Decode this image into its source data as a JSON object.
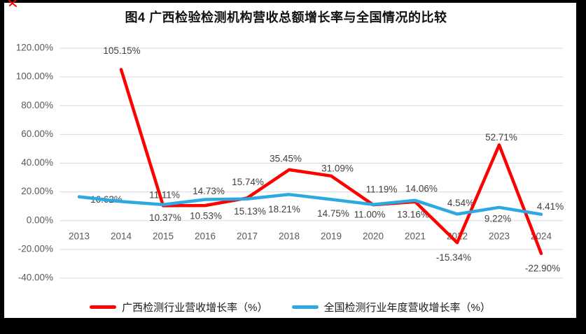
{
  "page": {
    "frame_color": "#000000",
    "panel_bg": "#ffffff",
    "corner_mark_color": "#ff0000"
  },
  "chart_data": {
    "type": "line",
    "title": "图4 广西检验检测机构营收总额增长率与全国情况的比较",
    "categories": [
      "2013",
      "2014",
      "2015",
      "2016",
      "2017",
      "2018",
      "2019",
      "2020",
      "2021",
      "2022",
      "2023",
      "2024"
    ],
    "ylim": [
      -40,
      120
    ],
    "grid": true,
    "legend_position": "bottom",
    "grid_color": "#d9d9d9",
    "axis_text_color": "#595959",
    "label_text_color": "#404040",
    "y_ticks": [
      {
        "label": "120.00%",
        "value": 120
      },
      {
        "label": "100.00%",
        "value": 100
      },
      {
        "label": "80.00%",
        "value": 80
      },
      {
        "label": "60.00%",
        "value": 60
      },
      {
        "label": "40.00%",
        "value": 40
      },
      {
        "label": "20.00%",
        "value": 20
      },
      {
        "label": "0.00%",
        "value": 0
      },
      {
        "label": "-20.00%",
        "value": -20
      },
      {
        "label": "-40.00%",
        "value": -40
      }
    ],
    "series": [
      {
        "name": "广西检测行业营收增长率（%）",
        "color": "#fe0000",
        "values": [
          null,
          105.15,
          10.37,
          10.53,
          15.74,
          35.45,
          31.09,
          11.0,
          13.16,
          -15.34,
          52.71,
          -22.9
        ],
        "labels": [
          "",
          "105.15%",
          "10.37%",
          "10.53%",
          "15.74%",
          "35.45%",
          "31.09%",
          "11.00%",
          "13.16%",
          "-15.34%",
          "52.71%",
          "-22.90%"
        ]
      },
      {
        "name": "全国检测行业年度营收增长率（%）",
        "color": "#2ba9e0",
        "values": [
          16.62,
          13.3,
          11.11,
          14.73,
          15.13,
          18.21,
          14.75,
          11.19,
          14.06,
          4.54,
          9.22,
          4.41
        ],
        "labels": [
          "16.62%",
          "",
          "11.11%",
          "14.73%",
          "15.13%",
          "18.21%",
          "14.75%",
          "11.19%",
          "14.06%",
          "4.54%",
          "9.22%",
          "4.41%"
        ]
      }
    ]
  }
}
